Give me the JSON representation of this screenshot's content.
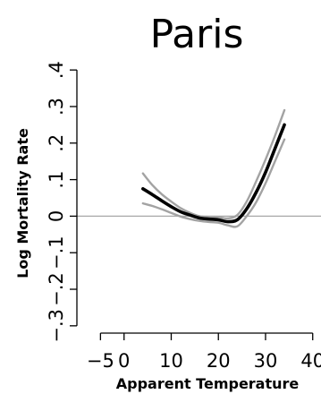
{
  "chart_data": {
    "type": "line",
    "title": "Paris",
    "xlabel": "Apparent Temperature",
    "ylabel": "Log Mortality Rate",
    "xlim": [
      -10,
      41
    ],
    "ylim": [
      -0.32,
      0.42
    ],
    "x_ticks": [
      {
        "value": -5,
        "label": "−5"
      },
      {
        "value": 0,
        "label": "0"
      },
      {
        "value": 10,
        "label": "10"
      },
      {
        "value": 20,
        "label": "20"
      },
      {
        "value": 30,
        "label": "30"
      },
      {
        "value": 40,
        "label": "40"
      }
    ],
    "y_ticks": [
      {
        "value": -0.3,
        "label": "−.3"
      },
      {
        "value": -0.2,
        "label": "−.2"
      },
      {
        "value": -0.1,
        "label": "−.1"
      },
      {
        "value": 0,
        "label": "0"
      },
      {
        "value": 0.1,
        "label": ".1"
      },
      {
        "value": 0.2,
        "label": ".2"
      },
      {
        "value": 0.3,
        "label": ".3"
      },
      {
        "value": 0.4,
        "label": ".4"
      }
    ],
    "reference_line_y": 0,
    "grid": false,
    "series": [
      {
        "role": "estimate",
        "color": "#000000",
        "x": [
          4,
          6,
          8,
          10,
          12,
          14,
          16,
          18,
          20,
          22,
          24,
          26,
          28,
          30,
          32,
          34
        ],
        "y": [
          0.075,
          0.059,
          0.042,
          0.026,
          0.012,
          0.003,
          -0.005,
          -0.008,
          -0.01,
          -0.015,
          -0.01,
          0.02,
          0.065,
          0.12,
          0.185,
          0.25
        ]
      },
      {
        "role": "upper-ci",
        "color": "#a3a3a3",
        "x": [
          4,
          6,
          8,
          10,
          12,
          14,
          16,
          18,
          20,
          22,
          24,
          26,
          28,
          30,
          32,
          34
        ],
        "y": [
          0.117,
          0.085,
          0.06,
          0.04,
          0.022,
          0.009,
          0.0,
          -0.002,
          -0.003,
          -0.006,
          0.003,
          0.04,
          0.095,
          0.155,
          0.22,
          0.29
        ]
      },
      {
        "role": "lower-ci",
        "color": "#a3a3a3",
        "x": [
          4,
          6,
          8,
          10,
          12,
          14,
          16,
          18,
          20,
          22,
          24,
          26,
          28,
          30,
          32,
          34
        ],
        "y": [
          0.035,
          0.028,
          0.019,
          0.009,
          -0.001,
          -0.008,
          -0.013,
          -0.016,
          -0.018,
          -0.025,
          -0.028,
          0.0,
          0.038,
          0.09,
          0.15,
          0.21
        ]
      }
    ]
  }
}
